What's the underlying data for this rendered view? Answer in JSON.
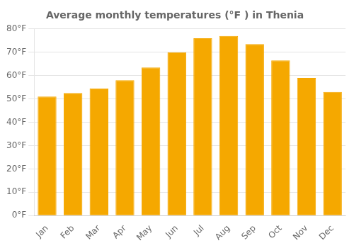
{
  "chart_data": {
    "type": "bar",
    "title": "Average monthly temperatures (°F ) in Thenia",
    "categories": [
      "Jan",
      "Feb",
      "Mar",
      "Apr",
      "May",
      "Jun",
      "Jul",
      "Aug",
      "Sep",
      "Oct",
      "Nov",
      "Dec"
    ],
    "values": [
      51,
      52.5,
      54.5,
      58,
      63.5,
      70,
      76,
      77,
      73.5,
      66.5,
      59,
      53
    ],
    "color": "#F5A800",
    "ylim": [
      0,
      80
    ],
    "yticks": [
      {
        "value": 0,
        "label": "0°F"
      },
      {
        "value": 10,
        "label": "10°F"
      },
      {
        "value": 20,
        "label": "20°F"
      },
      {
        "value": 30,
        "label": "30°F"
      },
      {
        "value": 40,
        "label": "40°F"
      },
      {
        "value": 50,
        "label": "50°F"
      },
      {
        "value": 60,
        "label": "60°F"
      },
      {
        "value": 70,
        "label": "70°F"
      },
      {
        "value": 80,
        "label": "80°F"
      }
    ],
    "grid": "y"
  }
}
